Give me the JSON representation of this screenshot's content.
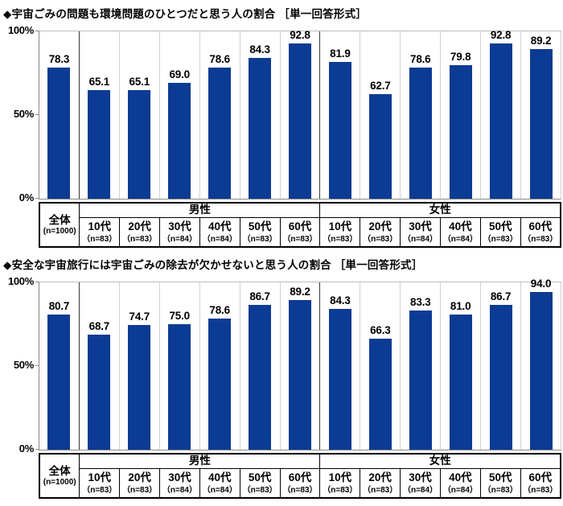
{
  "colors": {
    "bar": "#0c3b94",
    "column_separator": "#d2d2d2",
    "group_separator": "#3a3a3a",
    "table_border": "#000000"
  },
  "charts": [
    {
      "title": "◆宇宙ごみの問題も環境問題のひとつだと思う人の割合 ［単一回答形式］",
      "chart_data": {
        "type": "bar",
        "ylim": [
          0,
          100
        ],
        "grid": false,
        "yticks": [
          {
            "value": 100,
            "label": "100%"
          },
          {
            "value": 50,
            "label": "50%"
          },
          {
            "value": 0,
            "label": "0%"
          }
        ],
        "overall": {
          "label": "全体",
          "n_label": "(n=1000)",
          "value": 78.3
        },
        "categories": [
          "10代",
          "20代",
          "30代",
          "40代",
          "50代",
          "60代"
        ],
        "n_labels": [
          "（n=83）",
          "（n=83）",
          "（n=84）",
          "（n=84）",
          "（n=83）",
          "（n=83）"
        ],
        "series": [
          {
            "name": "男性",
            "values": [
              65.1,
              65.1,
              69.0,
              78.6,
              84.3,
              92.8
            ]
          },
          {
            "name": "女性",
            "values": [
              81.9,
              62.7,
              78.6,
              79.8,
              92.8,
              89.2
            ]
          }
        ]
      }
    },
    {
      "title": "◆安全な宇宙旅行には宇宙ごみの除去が欠かせないと思う人の割合 ［単一回答形式］",
      "chart_data": {
        "type": "bar",
        "ylim": [
          0,
          100
        ],
        "grid": false,
        "yticks": [
          {
            "value": 100,
            "label": "100%"
          },
          {
            "value": 50,
            "label": "50%"
          },
          {
            "value": 0,
            "label": "0%"
          }
        ],
        "overall": {
          "label": "全体",
          "n_label": "(n=1000)",
          "value": 80.7
        },
        "categories": [
          "10代",
          "20代",
          "30代",
          "40代",
          "50代",
          "60代"
        ],
        "n_labels": [
          "（n=83）",
          "（n=83）",
          "（n=84）",
          "（n=84）",
          "（n=83）",
          "（n=83）"
        ],
        "series": [
          {
            "name": "男性",
            "values": [
              68.7,
              74.7,
              75.0,
              78.6,
              86.7,
              89.2
            ]
          },
          {
            "name": "女性",
            "values": [
              84.3,
              66.3,
              83.3,
              81.0,
              86.7,
              94.0
            ]
          }
        ]
      }
    }
  ]
}
